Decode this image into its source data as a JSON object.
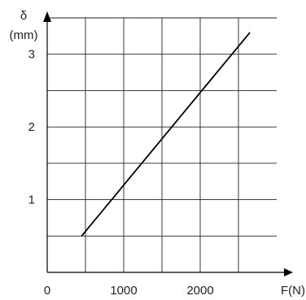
{
  "chart_data": {
    "type": "line",
    "title": "",
    "xlabel": "F(N)",
    "ylabel_symbol": "δ",
    "ylabel_unit": "(mm)",
    "x_origin_label": "0",
    "x_ticks": [
      1000,
      2000
    ],
    "x_tick_labels": [
      "1000",
      "2000"
    ],
    "y_ticks": [
      1,
      2,
      3
    ],
    "y_tick_labels": [
      "1",
      "2",
      "3"
    ],
    "x_gridlines": [
      500,
      1000,
      1500,
      2000,
      2500
    ],
    "y_gridlines": [
      0.5,
      1,
      1.5,
      2,
      2.5,
      3,
      3.5
    ],
    "xlim": [
      0,
      3000
    ],
    "ylim": [
      0,
      3.5
    ],
    "grid": true,
    "series": [
      {
        "x": [
          450,
          2650
        ],
        "y": [
          0.5,
          3.3
        ]
      }
    ],
    "colors": {
      "line": "#000000",
      "grid": "#222222",
      "background": "#ffffff"
    }
  }
}
